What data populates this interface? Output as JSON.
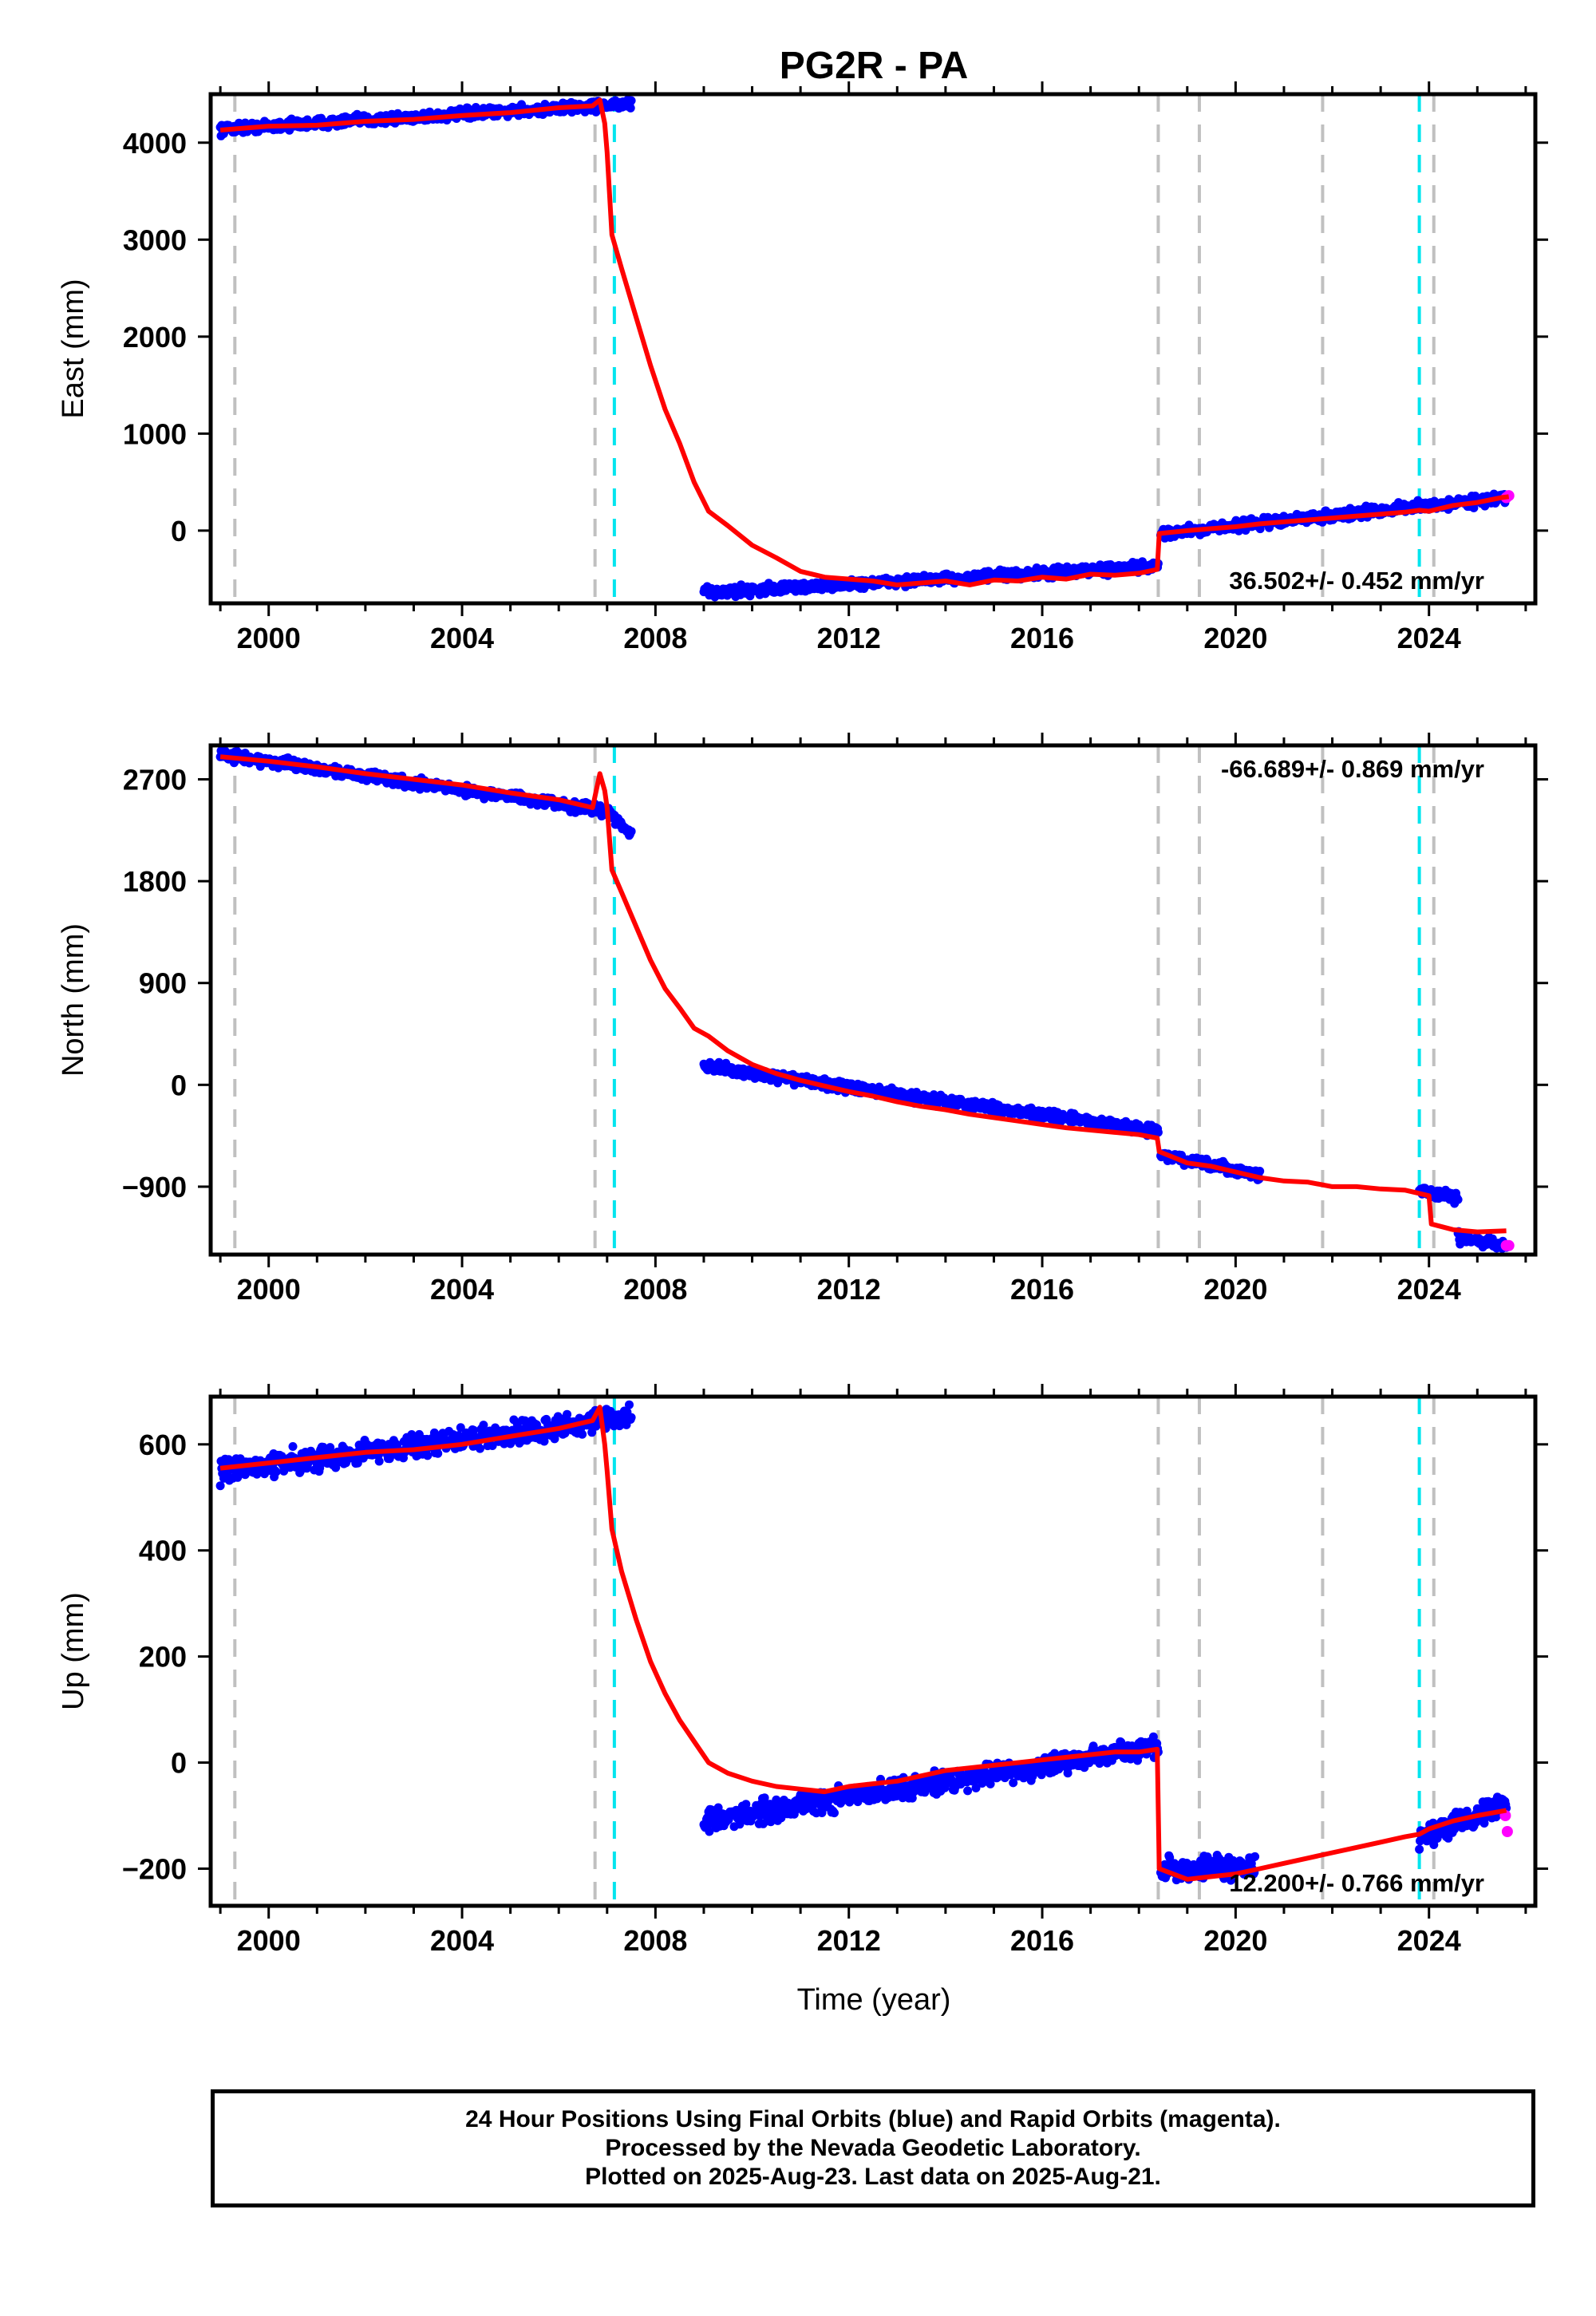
{
  "colors": {
    "final_orbits": "#0000ff",
    "rapid_orbits": "#ff00ff",
    "model": "#ff0000",
    "equipment_change_lines": "#c0c0c0",
    "earthquake_lines": "#00e5ee"
  },
  "chart_data": {
    "type": "scatter",
    "title": "PG2R - PA",
    "xlabel": "Time (year)",
    "xlim": [
      1998.8,
      2026.2
    ],
    "x_ticks": [
      "2000",
      "2004",
      "2008",
      "2012",
      "2016",
      "2020",
      "2024"
    ],
    "vertical_lines": {
      "gray_dashed": [
        1999.3,
        2006.75,
        2018.4,
        2019.25,
        2021.8,
        2024.1
      ],
      "cyan_dashed": [
        2007.15,
        2023.8
      ]
    },
    "panels": [
      {
        "id": "east",
        "ylabel": "East (mm)",
        "ylim": [
          -750,
          4500
        ],
        "y_ticks": [
          "0",
          "1000",
          "2000",
          "3000",
          "4000"
        ],
        "velocity_label": "36.502+/- 0.452 mm/yr",
        "velocity_label_position": "bottom-right",
        "series": [
          {
            "kind": "final_orbits",
            "segments": [
              {
                "x": [
                  1999.0,
                  2007.5
                ],
                "y": [
                  4140,
                  4400
                ]
              },
              {
                "x": [
                  2009.0,
                  2018.4
                ],
                "y": [
                  -640,
                  -370
                ]
              },
              {
                "x": [
                  2018.45,
                  2025.6
                ],
                "y": [
                  -30,
                  340
                ]
              }
            ]
          },
          {
            "kind": "rapid_orbits",
            "points": [
              [
                2025.6,
                340
              ],
              [
                2025.65,
                360
              ]
            ]
          },
          {
            "kind": "model",
            "x": [
              1999.0,
              2000.0,
              2001.0,
              2002.0,
              2003.0,
              2004.0,
              2005.0,
              2006.0,
              2006.7,
              2006.85,
              2006.95,
              2007.0,
              2007.1,
              2007.3,
              2007.6,
              2007.9,
              2008.2,
              2008.5,
              2008.8,
              2009.1,
              2009.5,
              2010.0,
              2010.5,
              2011.0,
              2011.5,
              2012.0,
              2012.5,
              2013.0,
              2013.5,
              2014.0,
              2014.5,
              2015.0,
              2015.5,
              2016.0,
              2016.5,
              2017.0,
              2017.5,
              2018.0,
              2018.38,
              2018.42,
              2019.0,
              2019.5,
              2020.0,
              2020.5,
              2021.0,
              2021.5,
              2022.0,
              2022.5,
              2023.0,
              2023.5,
              2023.8,
              2024.0,
              2024.5,
              2025.0,
              2025.5,
              2025.65
            ],
            "y": [
              4130,
              4170,
              4180,
              4220,
              4240,
              4280,
              4310,
              4360,
              4380,
              4440,
              4200,
              3900,
              3050,
              2700,
              2200,
              1700,
              1250,
              900,
              500,
              200,
              50,
              -150,
              -280,
              -420,
              -480,
              -500,
              -520,
              -560,
              -540,
              -520,
              -560,
              -510,
              -520,
              -480,
              -500,
              -450,
              -460,
              -440,
              -400,
              -30,
              0,
              20,
              40,
              70,
              90,
              110,
              130,
              150,
              170,
              190,
              210,
              200,
              260,
              290,
              340,
              350
            ]
          }
        ]
      },
      {
        "id": "north",
        "ylabel": "North (mm)",
        "ylim": [
          -1500,
          3000
        ],
        "y_ticks": [
          "−900",
          "0",
          "900",
          "1800",
          "2700"
        ],
        "velocity_label": "-66.689+/- 0.869 mm/yr",
        "velocity_label_position": "top-right",
        "series": [
          {
            "kind": "final_orbits",
            "segments": [
              {
                "x": [
                  1999.0,
                  2007.0
                ],
                "y": [
                  2920,
                  2420
                ]
              },
              {
                "x": [
                  2007.0,
                  2007.5
                ],
                "y": [
                  2420,
                  2230
                ]
              },
              {
                "x": [
                  2009.0,
                  2018.4
                ],
                "y": [
                  160,
                  -410
                ]
              },
              {
                "x": [
                  2018.45,
                  2020.5
                ],
                "y": [
                  -620,
                  -800
                ]
              },
              {
                "x": [
                  2023.8,
                  2024.6
                ],
                "y": [
                  -930,
                  -1000
                ]
              },
              {
                "x": [
                  2024.6,
                  2025.6
                ],
                "y": [
                  -1350,
                  -1420
                ]
              }
            ]
          },
          {
            "kind": "rapid_orbits",
            "points": [
              [
                2025.6,
                -1420
              ],
              [
                2025.65,
                -1420
              ]
            ]
          },
          {
            "kind": "model",
            "x": [
              1999.0,
              2000.0,
              2001.0,
              2002.0,
              2003.0,
              2004.0,
              2005.0,
              2006.0,
              2006.7,
              2006.85,
              2006.95,
              2007.0,
              2007.1,
              2007.3,
              2007.6,
              2007.9,
              2008.2,
              2008.5,
              2008.8,
              2009.1,
              2009.5,
              2010.0,
              2010.5,
              2011.0,
              2011.5,
              2012.0,
              2012.5,
              2013.0,
              2013.5,
              2014.0,
              2014.5,
              2015.0,
              2015.5,
              2016.0,
              2016.5,
              2017.0,
              2017.5,
              2018.0,
              2018.38,
              2018.42,
              2019.0,
              2019.5,
              2020.0,
              2020.5,
              2021.0,
              2021.5,
              2022.0,
              2022.5,
              2023.0,
              2023.5,
              2023.8,
              2024.0,
              2024.05,
              2024.5,
              2025.0,
              2025.6
            ],
            "y": [
              2900,
              2860,
              2810,
              2750,
              2700,
              2650,
              2580,
              2520,
              2450,
              2750,
              2600,
              2450,
              1900,
              1700,
              1400,
              1100,
              850,
              680,
              500,
              430,
              300,
              180,
              100,
              40,
              -10,
              -60,
              -100,
              -150,
              -190,
              -220,
              -260,
              -290,
              -320,
              -350,
              -380,
              -400,
              -420,
              -440,
              -470,
              -590,
              -690,
              -720,
              -770,
              -820,
              -850,
              -860,
              -900,
              -900,
              -920,
              -930,
              -960,
              -980,
              -1230,
              -1280,
              -1300,
              -1290
            ]
          }
        ]
      },
      {
        "id": "up",
        "ylabel": "Up (mm)",
        "ylim": [
          -270,
          690
        ],
        "y_ticks": [
          "−200",
          "0",
          "200",
          "400",
          "600"
        ],
        "velocity_label": "12.200+/- 0.766 mm/yr",
        "velocity_label_position": "bottom-right",
        "series": [
          {
            "kind": "final_orbits",
            "segments": [
              {
                "x": [
                  1999.0,
                  2007.5
                ],
                "y": [
                  550,
                  650
                ]
              },
              {
                "x": [
                  2009.0,
                  2018.4
                ],
                "y": [
                  -110,
                  30
                ]
              },
              {
                "x": [
                  2018.45,
                  2020.4
                ],
                "y": [
                  -200,
                  -200
                ]
              },
              {
                "x": [
                  2023.8,
                  2025.6
                ],
                "y": [
                  -140,
                  -80
                ]
              }
            ]
          },
          {
            "kind": "rapid_orbits",
            "points": [
              [
                2025.58,
                -100
              ],
              [
                2025.62,
                -130
              ]
            ]
          },
          {
            "kind": "model",
            "x": [
              1999.0,
              2000.0,
              2001.0,
              2002.0,
              2003.0,
              2004.0,
              2005.0,
              2006.0,
              2006.7,
              2006.85,
              2006.95,
              2007.0,
              2007.1,
              2007.3,
              2007.6,
              2007.9,
              2008.2,
              2008.5,
              2008.8,
              2009.1,
              2009.5,
              2010.0,
              2010.5,
              2011.0,
              2011.5,
              2012.0,
              2012.5,
              2013.0,
              2013.5,
              2014.0,
              2014.5,
              2015.0,
              2015.5,
              2016.0,
              2016.5,
              2017.0,
              2017.5,
              2018.0,
              2018.38,
              2018.42,
              2019.0,
              2019.5,
              2020.0,
              2020.5,
              2021.0,
              2021.5,
              2022.0,
              2022.5,
              2023.0,
              2023.5,
              2023.8,
              2024.0,
              2024.5,
              2025.0,
              2025.6
            ],
            "y": [
              555,
              565,
              575,
              585,
              590,
              600,
              615,
              630,
              645,
              670,
              600,
              550,
              440,
              360,
              270,
              190,
              130,
              80,
              40,
              0,
              -20,
              -35,
              -45,
              -50,
              -55,
              -45,
              -40,
              -35,
              -25,
              -15,
              -10,
              -5,
              0,
              5,
              10,
              15,
              20,
              20,
              25,
              -200,
              -220,
              -215,
              -210,
              -200,
              -190,
              -180,
              -170,
              -160,
              -150,
              -140,
              -135,
              -125,
              -110,
              -100,
              -90
            ]
          }
        ]
      }
    ]
  },
  "footer": {
    "line1": "24 Hour Positions Using Final Orbits (blue) and Rapid Orbits (magenta).",
    "line2": "Processed by the Nevada Geodetic Laboratory.",
    "line3": "Plotted on 2025-Aug-23. Last data on 2025-Aug-21."
  }
}
